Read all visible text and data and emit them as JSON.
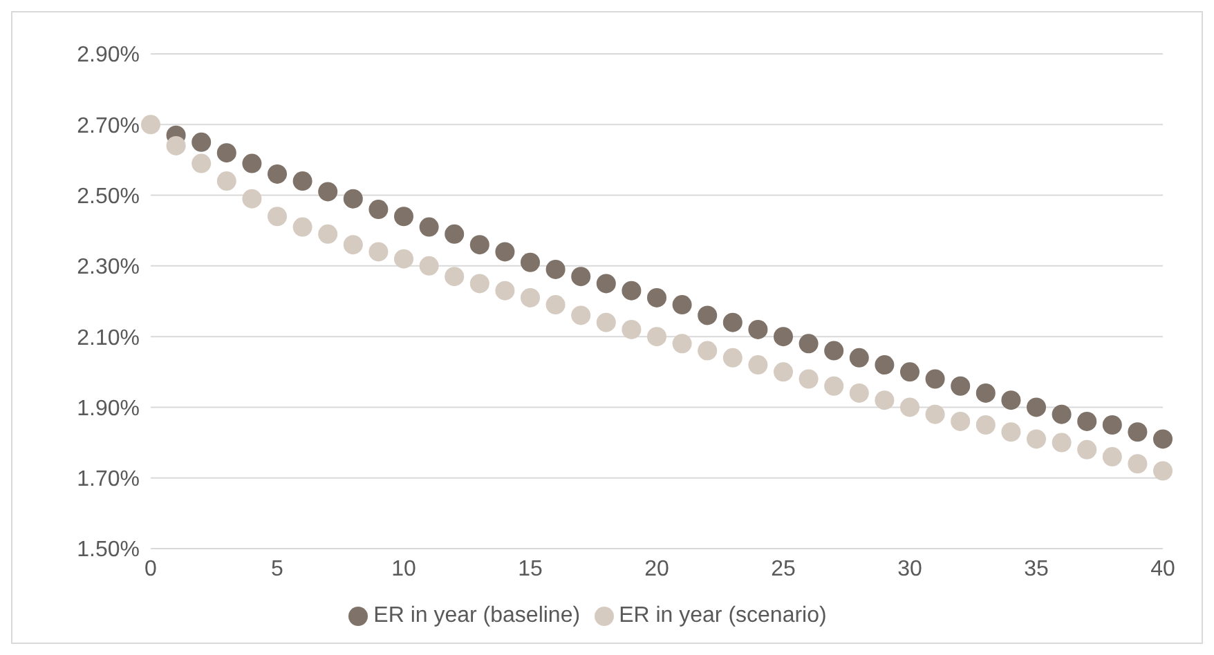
{
  "chart_data": {
    "type": "scatter",
    "x": [
      0,
      1,
      2,
      3,
      4,
      5,
      6,
      7,
      8,
      9,
      10,
      11,
      12,
      13,
      14,
      15,
      16,
      17,
      18,
      19,
      20,
      21,
      22,
      23,
      24,
      25,
      26,
      27,
      28,
      29,
      30,
      31,
      32,
      33,
      34,
      35,
      36,
      37,
      38,
      39,
      40
    ],
    "series": [
      {
        "name": "ER in year (baseline)",
        "color": "#7f7369",
        "values": [
          null,
          2.67,
          2.65,
          2.62,
          2.59,
          2.56,
          2.54,
          2.51,
          2.49,
          2.46,
          2.44,
          2.41,
          2.39,
          2.36,
          2.34,
          2.31,
          2.29,
          2.27,
          2.25,
          2.23,
          2.21,
          2.19,
          2.16,
          2.14,
          2.12,
          2.1,
          2.08,
          2.06,
          2.04,
          2.02,
          2.0,
          1.98,
          1.96,
          1.94,
          1.92,
          1.9,
          1.88,
          1.86,
          1.85,
          1.83,
          1.81
        ]
      },
      {
        "name": "ER in year (scenario)",
        "color": "#d5cbc1",
        "values": [
          2.7,
          2.64,
          2.59,
          2.54,
          2.49,
          2.44,
          2.41,
          2.39,
          2.36,
          2.34,
          2.32,
          2.3,
          2.27,
          2.25,
          2.23,
          2.21,
          2.19,
          2.16,
          2.14,
          2.12,
          2.1,
          2.08,
          2.06,
          2.04,
          2.02,
          2.0,
          1.98,
          1.96,
          1.94,
          1.92,
          1.9,
          1.88,
          1.86,
          1.85,
          1.83,
          1.81,
          1.8,
          1.78,
          1.76,
          1.74,
          1.72
        ]
      }
    ],
    "xlim": [
      0,
      40
    ],
    "xticks": [
      0,
      5,
      10,
      15,
      20,
      25,
      30,
      35,
      40
    ],
    "ylim": [
      1.5,
      2.9
    ],
    "yticks": [
      {
        "value": 1.5,
        "label": "1.50%"
      },
      {
        "value": 1.7,
        "label": "1.70%"
      },
      {
        "value": 1.9,
        "label": "1.90%"
      },
      {
        "value": 2.1,
        "label": "2.10%"
      },
      {
        "value": 2.3,
        "label": "2.30%"
      },
      {
        "value": 2.5,
        "label": "2.50%"
      },
      {
        "value": 2.7,
        "label": "2.70%"
      },
      {
        "value": 2.9,
        "label": "2.90%"
      }
    ],
    "grid": "y",
    "legend": "bottom",
    "marker": "circle"
  }
}
